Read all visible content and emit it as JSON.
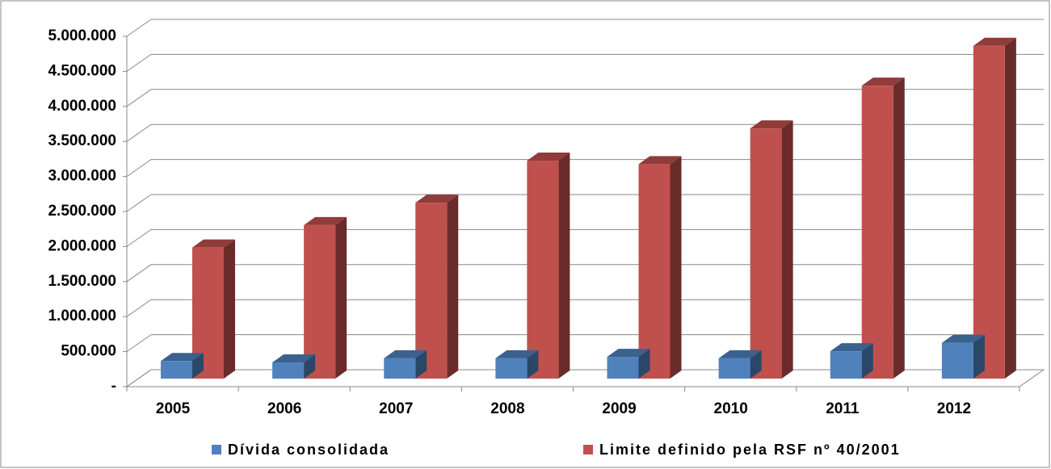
{
  "chart_data": {
    "type": "bar3d",
    "categories": [
      "2005",
      "2006",
      "2007",
      "2008",
      "2009",
      "2010",
      "2011",
      "2012"
    ],
    "series": [
      {
        "name": "Dívida consolidada",
        "color": "#4f81bd",
        "values": [
          250000,
          230000,
          290000,
          290000,
          310000,
          290000,
          390000,
          510000
        ]
      },
      {
        "name": "Limite definido pela RSF nº 40/2001",
        "color": "#c0504d",
        "values": [
          1870000,
          2190000,
          2510000,
          3110000,
          3060000,
          3570000,
          4180000,
          4750000
        ]
      }
    ],
    "ylim": [
      0,
      5000000
    ],
    "yticks": [
      {
        "value": 0,
        "label": "-"
      },
      {
        "value": 500000,
        "label": "500.000"
      },
      {
        "value": 1000000,
        "label": "1.000.000"
      },
      {
        "value": 1500000,
        "label": "1.500.000"
      },
      {
        "value": 2000000,
        "label": "2.000.000"
      },
      {
        "value": 2500000,
        "label": "2.500.000"
      },
      {
        "value": 3000000,
        "label": "3.000.000"
      },
      {
        "value": 3500000,
        "label": "3.500.000"
      },
      {
        "value": 4000000,
        "label": "4.000.000"
      },
      {
        "value": 4500000,
        "label": "4.500.000"
      },
      {
        "value": 5000000,
        "label": "5.000.000"
      }
    ],
    "grid": true,
    "legend": "bottom"
  }
}
